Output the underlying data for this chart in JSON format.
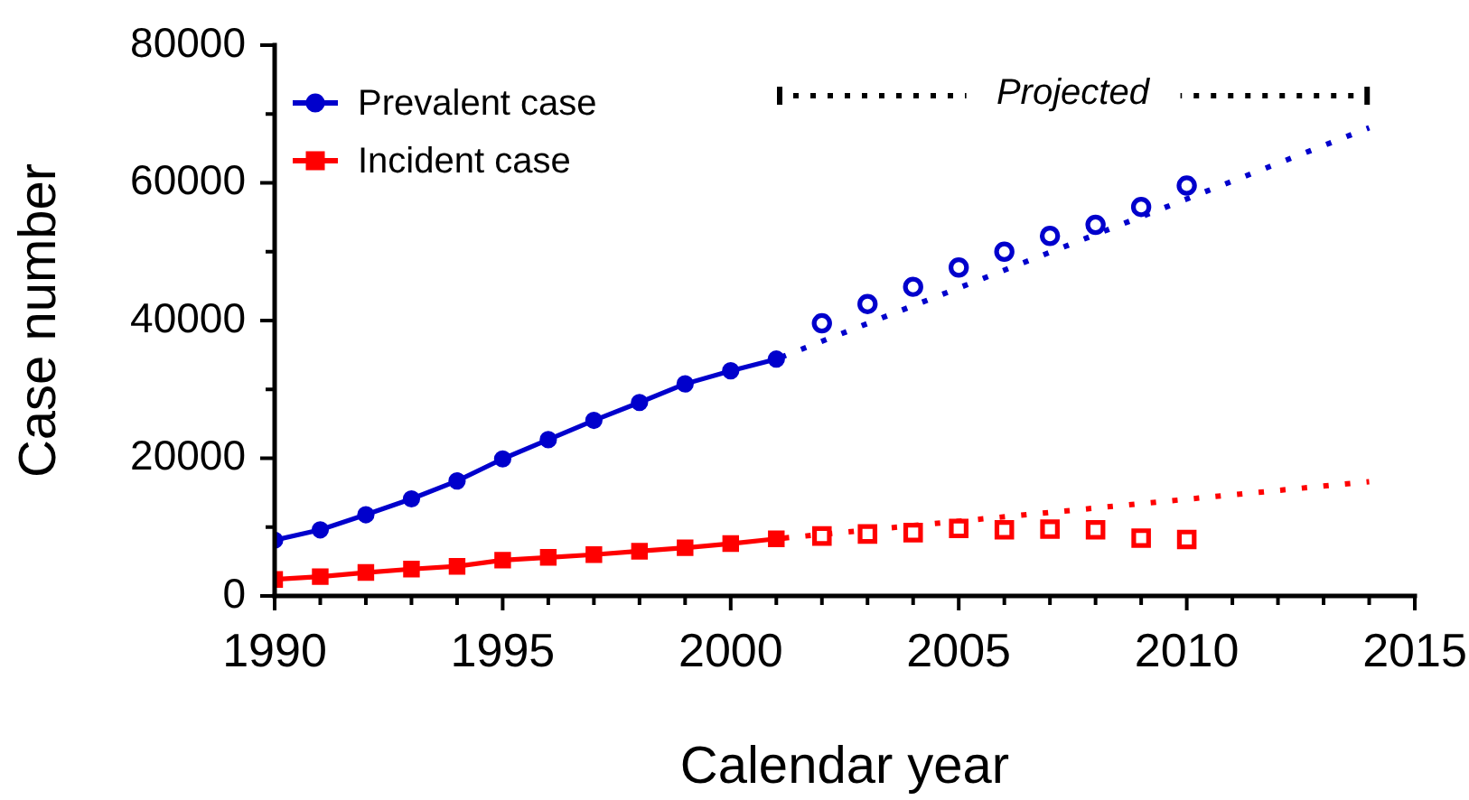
{
  "chart_data": {
    "type": "line",
    "xlabel": "Calendar year",
    "ylabel": "Case number",
    "xlim": [
      1990,
      2015
    ],
    "xticks": [
      1990,
      {
        "value": 1991,
        "label": null
      },
      {
        "value": 1992,
        "label": null
      },
      {
        "value": 1993,
        "label": null
      },
      {
        "value": 1994,
        "label": null
      },
      1995,
      {
        "value": 1996,
        "label": null
      },
      {
        "value": 1997,
        "label": null
      },
      {
        "value": 1998,
        "label": null
      },
      {
        "value": 1999,
        "label": null
      },
      2000,
      {
        "value": 2001,
        "label": null
      },
      {
        "value": 2002,
        "label": null
      },
      {
        "value": 2003,
        "label": null
      },
      {
        "value": 2004,
        "label": null
      },
      2005,
      {
        "value": 2006,
        "label": null
      },
      {
        "value": 2007,
        "label": null
      },
      {
        "value": 2008,
        "label": null
      },
      {
        "value": 2009,
        "label": null
      },
      2010,
      {
        "value": 2011,
        "label": null
      },
      {
        "value": 2012,
        "label": null
      },
      {
        "value": 2013,
        "label": null
      },
      {
        "value": 2014,
        "label": null
      },
      2015
    ],
    "ylim": [
      0,
      80000
    ],
    "yticks": [
      0,
      {
        "value": 10000,
        "label": null
      },
      20000,
      {
        "value": 30000,
        "label": null
      },
      40000,
      {
        "value": 50000,
        "label": null
      },
      60000,
      {
        "value": 70000,
        "label": null
      },
      80000
    ],
    "grid": false,
    "legend": "top left",
    "annotations": [
      "Projected"
    ],
    "series": [
      {
        "name": "Prevalent case",
        "type": "line",
        "color": "#0000cc",
        "marker": "circle",
        "line_style": "solid",
        "x": [
          1990,
          1991,
          1992,
          1993,
          1994,
          1995,
          1996,
          1997,
          1998,
          1999,
          2000,
          2001
        ],
        "values": [
          8100,
          9600,
          11800,
          14100,
          16700,
          19900,
          22700,
          25500,
          28100,
          30800,
          32700,
          34400
        ]
      },
      {
        "name": "Incident case",
        "type": "line",
        "color": "#ff0000",
        "marker": "square",
        "line_style": "solid",
        "x": [
          1990,
          1991,
          1992,
          1993,
          1994,
          1995,
          1996,
          1997,
          1998,
          1999,
          2000,
          2001
        ],
        "values": [
          2400,
          2800,
          3400,
          3900,
          4300,
          5200,
          5600,
          6000,
          6500,
          7000,
          7600,
          8300
        ]
      },
      {
        "type": "scatter",
        "color": "#0000cc",
        "marker": "circle",
        "x": [
          2002,
          2003,
          2004,
          2005,
          2006,
          2007,
          2008,
          2009,
          2010
        ],
        "values": [
          39600,
          42400,
          44900,
          47700,
          50000,
          52300,
          53900,
          56500,
          59600
        ]
      },
      {
        "type": "scatter",
        "color": "#ff0000",
        "marker": "square",
        "x": [
          2002,
          2003,
          2004,
          2005,
          2006,
          2007,
          2008,
          2009,
          2010
        ],
        "values": [
          8700,
          9000,
          9200,
          9800,
          9600,
          9700,
          9600,
          8400,
          8200
        ]
      },
      {
        "type": "line",
        "color": "#0000cc",
        "marker": "none",
        "line_style": "dotted",
        "x": [
          2001,
          2014
        ],
        "values": [
          34400,
          68000
        ]
      },
      {
        "type": "line",
        "color": "#ff0000",
        "marker": "none",
        "line_style": "dotted",
        "x": [
          2001,
          2014
        ],
        "values": [
          8300,
          16600
        ]
      }
    ]
  }
}
